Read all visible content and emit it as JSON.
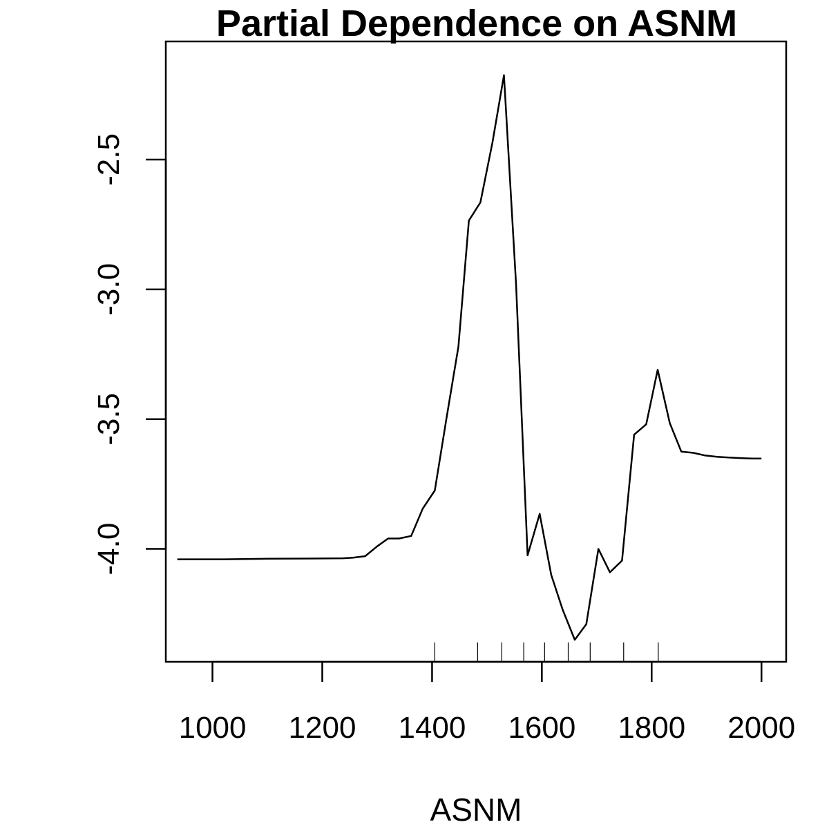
{
  "chart_data": {
    "type": "line",
    "title": "Partial Dependence on ASNM",
    "xlabel": "ASNM",
    "ylabel": "",
    "xlim": [
      915,
      2045
    ],
    "ylim": [
      -4.435,
      -2.045
    ],
    "x_ticks": [
      1000,
      1200,
      1400,
      1600,
      1800,
      2000
    ],
    "x_tick_labels": [
      "1000",
      "1200",
      "1400",
      "1600",
      "1800",
      "2000"
    ],
    "y_ticks": [
      -4.0,
      -3.5,
      -3.0,
      -2.5
    ],
    "y_tick_labels": [
      "-4.0",
      "-3.5",
      "-3.0",
      "-2.5"
    ],
    "grid": false,
    "legend": "none",
    "line_color": "#000000",
    "series": [
      {
        "x": [
          936,
          1020,
          1100,
          1180,
          1238,
          1256,
          1278,
          1300,
          1320,
          1340,
          1362,
          1383,
          1405,
          1426,
          1448,
          1467,
          1488,
          1510,
          1531,
          1553,
          1574,
          1596,
          1617,
          1638,
          1660,
          1681,
          1703,
          1724,
          1746,
          1768,
          1790,
          1811,
          1833,
          1854,
          1876,
          1897,
          1919,
          1940,
          1962,
          1983,
          2000
        ],
        "y": [
          -4.04,
          -4.04,
          -4.038,
          -4.037,
          -4.036,
          -4.034,
          -4.028,
          -3.99,
          -3.96,
          -3.96,
          -3.95,
          -3.845,
          -3.775,
          -3.5,
          -3.22,
          -2.735,
          -2.665,
          -2.435,
          -2.175,
          -2.98,
          -4.025,
          -3.865,
          -4.1,
          -4.235,
          -4.35,
          -4.29,
          -4.0,
          -4.09,
          -4.045,
          -3.56,
          -3.52,
          -3.31,
          -3.515,
          -3.625,
          -3.63,
          -3.64,
          -3.645,
          -3.648,
          -3.65,
          -3.652,
          -3.652
        ]
      }
    ],
    "rug": [
      1405,
      1483,
      1527,
      1567,
      1605,
      1648,
      1688,
      1749,
      1812
    ]
  }
}
